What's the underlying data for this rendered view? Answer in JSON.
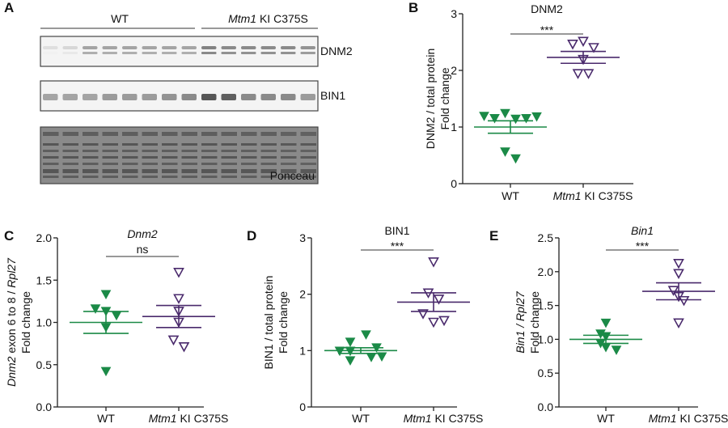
{
  "colors": {
    "wt": "#1b8a47",
    "ki": "#4a2a6c",
    "axis": "#222222",
    "blot_bg": "#f4f4f4",
    "ponceau_bg": "#8a8a8a"
  },
  "blot": {
    "panel_label": "A",
    "groups": [
      {
        "label": "WT",
        "italic_prefix": "",
        "lanes": 8
      },
      {
        "label": " KI C375S",
        "italic_prefix": "Mtm1",
        "lanes": 6
      }
    ],
    "strips": [
      {
        "label": "DNM2",
        "intensity": [
          0.1,
          0.15,
          0.45,
          0.45,
          0.45,
          0.45,
          0.45,
          0.45,
          0.65,
          0.6,
          0.6,
          0.6,
          0.6,
          0.55
        ]
      },
      {
        "label": "BIN1",
        "intensity": [
          0.45,
          0.45,
          0.45,
          0.5,
          0.5,
          0.5,
          0.55,
          0.6,
          0.9,
          0.85,
          0.6,
          0.6,
          0.6,
          0.5
        ]
      },
      {
        "label": "Ponceau",
        "intensity": [
          0.7,
          0.7,
          0.7,
          0.7,
          0.7,
          0.7,
          0.7,
          0.7,
          0.7,
          0.7,
          0.65,
          0.65,
          0.6,
          0.6
        ]
      }
    ]
  },
  "chart_data": [
    {
      "panel_label": "B",
      "type": "scatter",
      "title": "DNM2",
      "title_italic": false,
      "ylabel": [
        [
          {
            "t": "DNM2 / total protein",
            "i": false
          }
        ],
        [
          {
            "t": "Fold change",
            "i": false
          }
        ]
      ],
      "ylim": [
        0,
        3
      ],
      "yticks": [
        "0",
        "1",
        "2",
        "3"
      ],
      "ytick_values": [
        0,
        1,
        2,
        3
      ],
      "categories": [
        {
          "italic": "",
          "text": "WT"
        },
        {
          "italic": "Mtm1",
          "text": " KI C375S"
        }
      ],
      "significance": "***",
      "series": [
        {
          "group": "WT",
          "marker": "filled-down-triangle",
          "values": [
            1.19,
            1.15,
            1.24,
            1.14,
            1.15,
            1.18,
            0.56,
            0.44
          ],
          "mean": 1.0,
          "sem": 0.11
        },
        {
          "group": "Mtm1 KI C375S",
          "marker": "open-down-triangle",
          "values": [
            2.46,
            2.51,
            2.4,
            2.19,
            1.94,
            1.94
          ],
          "mean": 2.23,
          "sem": 0.105
        }
      ]
    },
    {
      "panel_label": "C",
      "type": "scatter",
      "title": "Dnm2",
      "title_italic": true,
      "ylabel": [
        [
          {
            "t": "Dnm2",
            "i": true
          },
          {
            "t": " exon 6 to 8 / ",
            "i": false
          },
          {
            "t": "Rpl27",
            "i": true
          }
        ],
        [
          {
            "t": "Fold change",
            "i": false
          }
        ]
      ],
      "ylim": [
        0,
        2.0
      ],
      "yticks": [
        "0.0",
        "0.5",
        "1.0",
        "1.5",
        "2.0"
      ],
      "ytick_values": [
        0,
        0.5,
        1,
        1.5,
        2
      ],
      "categories": [
        {
          "italic": "",
          "text": "WT"
        },
        {
          "italic": "Mtm1",
          "text": " KI C375S"
        }
      ],
      "significance": "ns",
      "series": [
        {
          "group": "WT",
          "marker": "filled-down-triangle",
          "values": [
            1.33,
            1.16,
            1.13,
            1.08,
            0.94,
            0.42
          ],
          "mean": 1.0,
          "sem": 0.13
        },
        {
          "group": "Mtm1 KI C375S",
          "marker": "open-down-triangle",
          "values": [
            1.59,
            1.28,
            1.13,
            1.0,
            0.79,
            0.71
          ],
          "mean": 1.07,
          "sem": 0.13
        }
      ]
    },
    {
      "panel_label": "D",
      "type": "scatter",
      "title": "BIN1",
      "title_italic": false,
      "ylabel": [
        [
          {
            "t": "BIN1 / total protein",
            "i": false
          }
        ],
        [
          {
            "t": "Fold change",
            "i": false
          }
        ]
      ],
      "ylim": [
        0,
        3
      ],
      "yticks": [
        "0",
        "1",
        "2",
        "3"
      ],
      "ytick_values": [
        0,
        1,
        2,
        3
      ],
      "categories": [
        {
          "italic": "",
          "text": "WT"
        },
        {
          "italic": "Mtm1",
          "text": " KI C375S"
        }
      ],
      "significance": "***",
      "series": [
        {
          "group": "WT",
          "marker": "filled-down-triangle",
          "values": [
            1.15,
            1.28,
            0.99,
            0.82,
            0.99,
            0.88,
            1.05,
            0.89
          ],
          "mean": 1.0,
          "sem": 0.05
        },
        {
          "group": "Mtm1 KI C375S",
          "marker": "open-down-triangle",
          "values": [
            2.57,
            2.02,
            1.91,
            1.65,
            1.5,
            1.53
          ],
          "mean": 1.86,
          "sem": 0.165
        }
      ]
    },
    {
      "panel_label": "E",
      "type": "scatter",
      "title": "Bin1",
      "title_italic": true,
      "ylabel": [
        [
          {
            "t": "Bin1 / Rpl27",
            "i": true
          }
        ],
        [
          {
            "t": "Fold change",
            "i": false
          }
        ]
      ],
      "ylim": [
        0,
        2.5
      ],
      "yticks": [
        "0.0",
        "0.5",
        "1.0",
        "1.5",
        "2.0",
        "2.5"
      ],
      "ytick_values": [
        0,
        0.5,
        1,
        1.5,
        2,
        2.5
      ],
      "categories": [
        {
          "italic": "",
          "text": "WT"
        },
        {
          "italic": "Mtm1",
          "text": " KI C375S"
        }
      ],
      "significance": "***",
      "series": [
        {
          "group": "WT",
          "marker": "filled-down-triangle",
          "values": [
            1.24,
            1.08,
            1.04,
            0.94,
            0.88,
            0.84
          ],
          "mean": 1.0,
          "sem": 0.06
        },
        {
          "group": "Mtm1 KI C375S",
          "marker": "open-down-triangle",
          "values": [
            2.12,
            1.97,
            1.72,
            1.63,
            1.57,
            1.24
          ],
          "mean": 1.71,
          "sem": 0.125
        }
      ]
    }
  ]
}
